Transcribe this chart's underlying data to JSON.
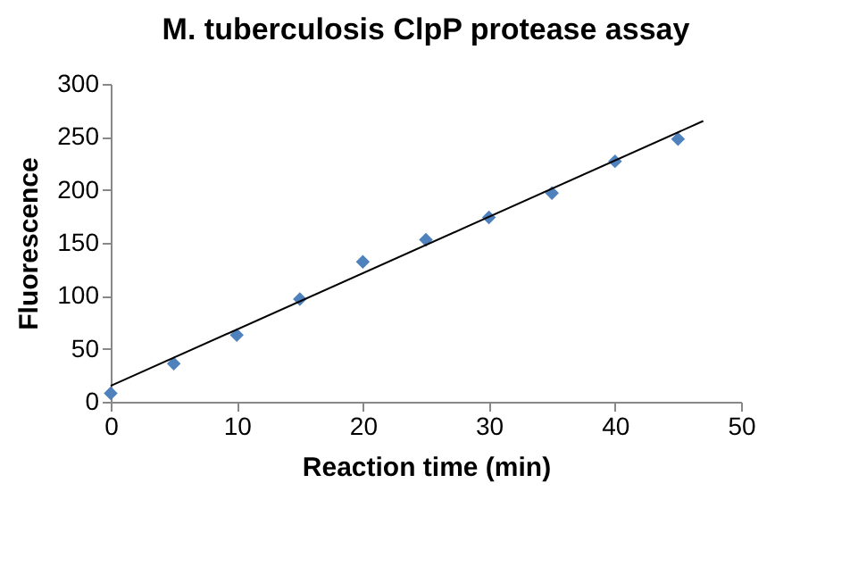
{
  "chart_data": {
    "type": "scatter",
    "title": "M. tuberculosis ClpP protease assay",
    "xlabel": "Reaction time (min)",
    "ylabel": "Fluorescence",
    "x": [
      0,
      5,
      10,
      15,
      20,
      25,
      30,
      35,
      40,
      45
    ],
    "series": [
      {
        "color": "#4f81bd",
        "values": [
          8,
          36,
          63,
          97,
          132,
          153,
          174,
          197,
          227,
          248
        ],
        "marker": "diamond"
      },
      {
        "type": "line",
        "color": "#000000",
        "x": [
          0,
          47
        ],
        "values": [
          15,
          265
        ],
        "marker": "none"
      }
    ],
    "xlim": [
      0,
      50
    ],
    "xticks": [
      0,
      10,
      20,
      30,
      40,
      50
    ],
    "ylim": [
      0,
      300
    ],
    "yticks": [
      0,
      50,
      100,
      150,
      200,
      250,
      300
    ],
    "grid": false
  }
}
